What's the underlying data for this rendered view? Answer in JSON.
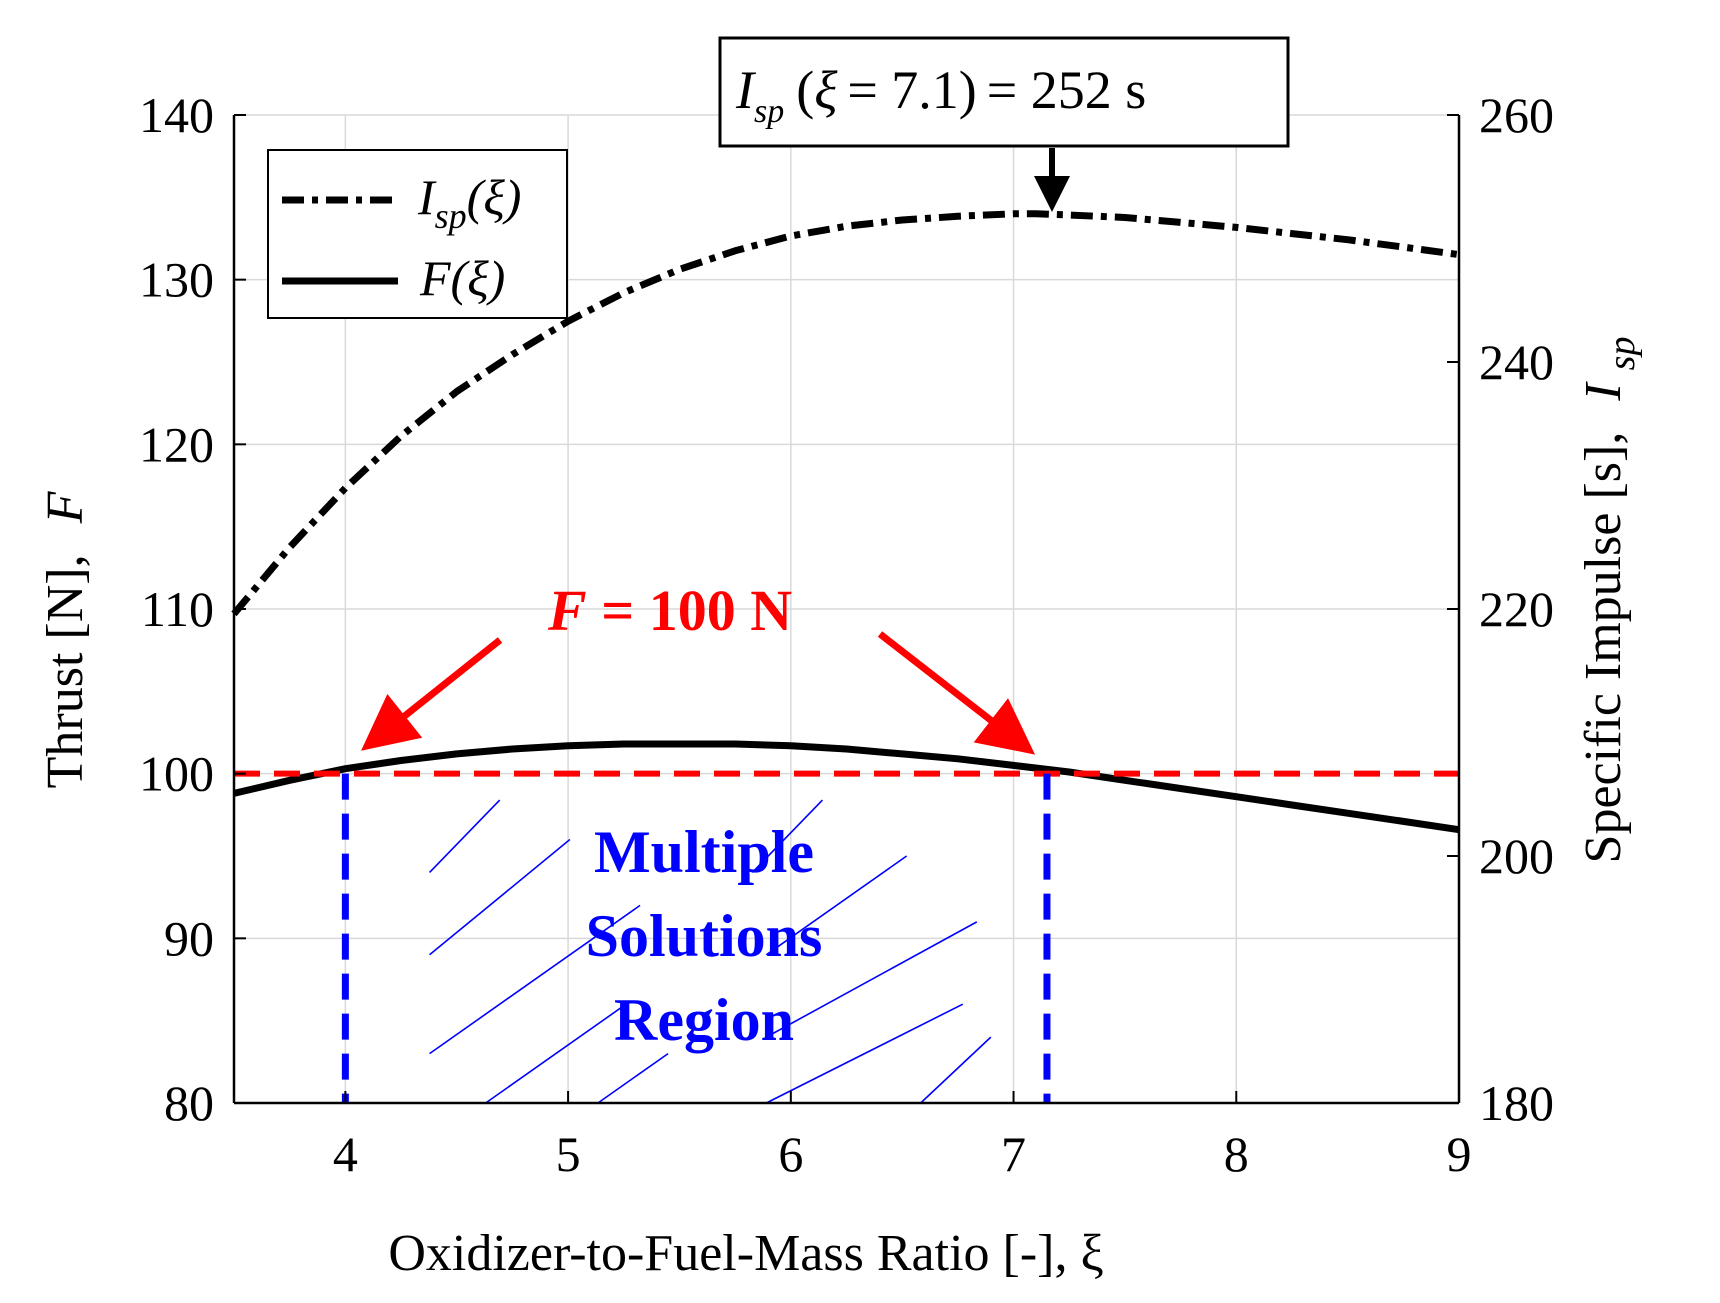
{
  "chart_data": {
    "type": "line",
    "xlabel": "Oxidizer-to-Fuel-Mass Ratio [-], ξ",
    "ylabel_left": "Thrust [N],",
    "ylabel_left_sym": "F",
    "ylabel_right": "Specific Impulse [s],",
    "ylabel_right_sym": "I",
    "ylabel_right_sub": "sp",
    "xlim": [
      3.5,
      9
    ],
    "ylim_left": [
      80,
      140
    ],
    "ylim_right": [
      180,
      260
    ],
    "x_ticks": [
      "4",
      "5",
      "6",
      "7",
      "8",
      "9"
    ],
    "y_left_ticks": [
      "80",
      "90",
      "100",
      "110",
      "120",
      "130",
      "140"
    ],
    "y_right_ticks": [
      "180",
      "200",
      "220",
      "240",
      "260"
    ],
    "grid": true,
    "series": [
      {
        "name": "Isp",
        "axis": "right",
        "style": "dash-dot",
        "x": [
          3.5,
          3.75,
          4.0,
          4.25,
          4.5,
          4.75,
          5.0,
          5.25,
          5.5,
          5.75,
          6.0,
          6.25,
          6.5,
          6.75,
          7.0,
          7.1,
          7.25,
          7.5,
          7.75,
          8.0,
          8.25,
          8.5,
          8.75,
          9.0
        ],
        "y": [
          219.6,
          225.0,
          229.8,
          234.0,
          237.6,
          240.6,
          243.3,
          245.6,
          247.5,
          249.0,
          250.2,
          251.0,
          251.5,
          251.8,
          252.0,
          252.0,
          251.9,
          251.7,
          251.3,
          250.9,
          250.4,
          249.9,
          249.3,
          248.7
        ]
      },
      {
        "name": "F",
        "axis": "left",
        "style": "solid",
        "x": [
          3.5,
          3.75,
          4.0,
          4.25,
          4.5,
          4.75,
          5.0,
          5.25,
          5.5,
          5.75,
          6.0,
          6.25,
          6.5,
          6.75,
          7.0,
          7.25,
          7.5,
          7.75,
          8.0,
          8.25,
          8.5,
          8.75,
          9.0
        ],
        "y": [
          98.8,
          99.6,
          100.3,
          100.8,
          101.2,
          101.5,
          101.7,
          101.8,
          101.8,
          101.8,
          101.7,
          101.5,
          101.2,
          100.9,
          100.5,
          100.1,
          99.6,
          99.1,
          98.6,
          98.1,
          97.6,
          97.1,
          96.6
        ]
      }
    ],
    "reference_line": {
      "axis": "left",
      "y": 100,
      "color": "#ff0000"
    },
    "region_bounds": {
      "x_start": 4.0,
      "x_end": 7.15,
      "color": "#0000ff"
    },
    "legend": {
      "position": "top-left",
      "entries": [
        {
          "sym": "I",
          "sub": "sp",
          "arg": "(ξ)"
        },
        {
          "sym": "F",
          "sub": "",
          "arg": "(ξ)"
        }
      ]
    },
    "annotations": {
      "peak_box": {
        "sym": "I",
        "sub": "sp",
        "xi": "ξ",
        "value": "= 7.1",
        "result": "= 252 s"
      },
      "thrust_label": {
        "sym": "F",
        "rest": " = 100 N"
      },
      "region_label": [
        "Multiple",
        "Solutions",
        "Region"
      ]
    }
  },
  "colors": {
    "red": "#ff0000",
    "blue": "#0000ff",
    "black": "#000000",
    "grid": "#d9d9d9"
  }
}
